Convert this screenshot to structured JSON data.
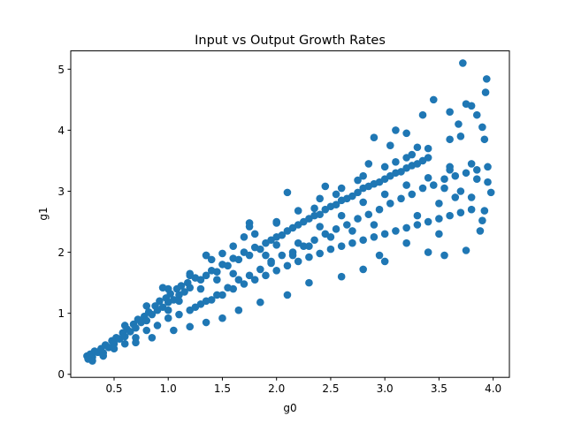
{
  "chart_data": {
    "type": "scatter",
    "title": "Input vs Output Growth Rates",
    "xlabel": "g0",
    "ylabel": "g1",
    "xlim": [
      0.1,
      4.15
    ],
    "ylim": [
      -0.05,
      5.3
    ],
    "xticks": [
      0.5,
      1.0,
      1.5,
      2.0,
      2.5,
      3.0,
      3.5,
      4.0
    ],
    "xtick_labels": [
      "0.5",
      "1.0",
      "1.5",
      "2.0",
      "2.5",
      "3.0",
      "3.5",
      "4.0"
    ],
    "yticks": [
      0,
      1,
      2,
      3,
      4,
      5
    ],
    "ytick_labels": [
      "0",
      "1",
      "2",
      "3",
      "4",
      "5"
    ],
    "grid": false,
    "marker_color": "#1f77b4",
    "series": [
      {
        "points": [
          [
            0.25,
            0.3
          ],
          [
            0.26,
            0.25
          ],
          [
            0.28,
            0.33
          ],
          [
            0.3,
            0.28
          ],
          [
            0.32,
            0.38
          ],
          [
            0.35,
            0.36
          ],
          [
            0.38,
            0.42
          ],
          [
            0.4,
            0.35
          ],
          [
            0.42,
            0.48
          ],
          [
            0.45,
            0.44
          ],
          [
            0.48,
            0.55
          ],
          [
            0.5,
            0.5
          ],
          [
            0.52,
            0.6
          ],
          [
            0.55,
            0.58
          ],
          [
            0.58,
            0.68
          ],
          [
            0.6,
            0.62
          ],
          [
            0.62,
            0.74
          ],
          [
            0.65,
            0.7
          ],
          [
            0.68,
            0.82
          ],
          [
            0.7,
            0.76
          ],
          [
            0.72,
            0.9
          ],
          [
            0.75,
            0.85
          ],
          [
            0.78,
            0.95
          ],
          [
            0.8,
            0.88
          ],
          [
            0.82,
            1.02
          ],
          [
            0.85,
            0.98
          ],
          [
            0.88,
            1.12
          ],
          [
            0.9,
            1.05
          ],
          [
            0.92,
            1.2
          ],
          [
            0.95,
            1.1
          ],
          [
            0.98,
            1.25
          ],
          [
            1.0,
            1.18
          ],
          [
            1.02,
            1.32
          ],
          [
            1.05,
            1.22
          ],
          [
            1.08,
            1.4
          ],
          [
            1.1,
            1.3
          ],
          [
            1.12,
            1.45
          ],
          [
            1.15,
            1.35
          ],
          [
            1.18,
            1.5
          ],
          [
            1.2,
            1.42
          ],
          [
            1.25,
            1.58
          ],
          [
            1.3,
            1.55
          ],
          [
            1.35,
            1.62
          ],
          [
            1.4,
            1.7
          ],
          [
            1.45,
            1.68
          ],
          [
            1.5,
            1.8
          ],
          [
            1.55,
            1.78
          ],
          [
            1.6,
            1.9
          ],
          [
            1.65,
            1.88
          ],
          [
            1.7,
            2.0
          ],
          [
            1.75,
            1.95
          ],
          [
            1.8,
            2.08
          ],
          [
            1.85,
            2.05
          ],
          [
            1.9,
            2.15
          ],
          [
            1.95,
            2.2
          ],
          [
            2.0,
            2.25
          ],
          [
            2.05,
            2.28
          ],
          [
            2.1,
            2.35
          ],
          [
            2.15,
            2.4
          ],
          [
            2.2,
            2.45
          ],
          [
            2.25,
            2.5
          ],
          [
            2.3,
            2.55
          ],
          [
            2.35,
            2.6
          ],
          [
            2.4,
            2.62
          ],
          [
            2.45,
            2.7
          ],
          [
            2.5,
            2.75
          ],
          [
            2.55,
            2.78
          ],
          [
            2.6,
            2.85
          ],
          [
            2.65,
            2.88
          ],
          [
            2.7,
            2.92
          ],
          [
            2.75,
            2.98
          ],
          [
            2.8,
            3.05
          ],
          [
            2.85,
            3.08
          ],
          [
            2.9,
            3.12
          ],
          [
            2.95,
            3.15
          ],
          [
            3.0,
            3.2
          ],
          [
            3.05,
            3.25
          ],
          [
            3.1,
            3.3
          ],
          [
            3.15,
            3.32
          ],
          [
            3.2,
            3.38
          ],
          [
            3.25,
            3.42
          ],
          [
            3.3,
            3.45
          ],
          [
            3.35,
            3.5
          ],
          [
            3.4,
            3.55
          ],
          [
            0.3,
            0.22
          ],
          [
            0.4,
            0.3
          ],
          [
            0.5,
            0.42
          ],
          [
            0.6,
            0.5
          ],
          [
            0.7,
            0.6
          ],
          [
            0.8,
            0.72
          ],
          [
            0.9,
            0.8
          ],
          [
            1.0,
            0.92
          ],
          [
            1.1,
            0.98
          ],
          [
            1.2,
            1.05
          ],
          [
            1.3,
            1.15
          ],
          [
            1.4,
            1.22
          ],
          [
            1.5,
            1.3
          ],
          [
            1.6,
            1.4
          ],
          [
            1.7,
            1.48
          ],
          [
            1.8,
            1.55
          ],
          [
            1.9,
            1.62
          ],
          [
            2.0,
            1.7
          ],
          [
            2.1,
            1.78
          ],
          [
            2.2,
            1.85
          ],
          [
            2.3,
            1.92
          ],
          [
            2.4,
            1.98
          ],
          [
            2.5,
            2.05
          ],
          [
            2.6,
            2.1
          ],
          [
            2.7,
            2.15
          ],
          [
            2.8,
            2.2
          ],
          [
            2.9,
            2.25
          ],
          [
            3.0,
            2.3
          ],
          [
            3.1,
            2.35
          ],
          [
            3.2,
            2.4
          ],
          [
            3.3,
            2.45
          ],
          [
            3.4,
            2.5
          ],
          [
            3.5,
            2.55
          ],
          [
            3.6,
            2.6
          ],
          [
            3.7,
            2.65
          ],
          [
            3.8,
            2.7
          ],
          [
            0.6,
            0.8
          ],
          [
            0.8,
            1.12
          ],
          [
            1.0,
            1.4
          ],
          [
            1.2,
            1.62
          ],
          [
            1.4,
            1.88
          ],
          [
            1.6,
            2.1
          ],
          [
            1.8,
            2.3
          ],
          [
            2.0,
            2.5
          ],
          [
            2.2,
            2.68
          ],
          [
            2.4,
            2.88
          ],
          [
            2.6,
            3.05
          ],
          [
            2.8,
            3.25
          ],
          [
            3.0,
            3.4
          ],
          [
            3.2,
            3.55
          ],
          [
            3.4,
            3.7
          ],
          [
            3.6,
            3.85
          ],
          [
            1.25,
            1.1
          ],
          [
            1.35,
            1.2
          ],
          [
            1.45,
            1.3
          ],
          [
            1.55,
            1.42
          ],
          [
            1.65,
            1.55
          ],
          [
            1.75,
            1.62
          ],
          [
            1.85,
            1.72
          ],
          [
            1.95,
            1.85
          ],
          [
            2.05,
            1.95
          ],
          [
            2.15,
            2.0
          ],
          [
            2.25,
            2.1
          ],
          [
            2.35,
            2.2
          ],
          [
            2.45,
            2.3
          ],
          [
            2.55,
            2.38
          ],
          [
            2.65,
            2.45
          ],
          [
            2.75,
            2.55
          ],
          [
            2.85,
            2.62
          ],
          [
            2.95,
            2.7
          ],
          [
            3.05,
            2.8
          ],
          [
            3.15,
            2.88
          ],
          [
            3.25,
            2.95
          ],
          [
            3.35,
            3.05
          ],
          [
            3.45,
            3.1
          ],
          [
            3.55,
            3.2
          ],
          [
            3.65,
            3.25
          ],
          [
            3.75,
            3.3
          ],
          [
            3.85,
            3.35
          ],
          [
            3.95,
            3.4
          ],
          [
            0.95,
            1.42
          ],
          [
            1.2,
            1.65
          ],
          [
            1.35,
            1.95
          ],
          [
            1.5,
            1.98
          ],
          [
            1.7,
            2.25
          ],
          [
            1.75,
            2.48
          ],
          [
            2.1,
            2.98
          ],
          [
            2.45,
            3.08
          ],
          [
            2.9,
            3.88
          ],
          [
            3.1,
            4.0
          ],
          [
            3.2,
            3.95
          ],
          [
            3.35,
            4.25
          ],
          [
            3.45,
            4.5
          ],
          [
            3.6,
            4.3
          ],
          [
            3.68,
            4.1
          ],
          [
            3.72,
            5.1
          ],
          [
            3.75,
            4.43
          ],
          [
            3.8,
            4.4
          ],
          [
            3.85,
            4.25
          ],
          [
            3.9,
            4.05
          ],
          [
            3.93,
            4.62
          ],
          [
            3.94,
            4.84
          ],
          [
            3.92,
            3.85
          ],
          [
            3.95,
            3.15
          ],
          [
            3.98,
            2.98
          ],
          [
            3.92,
            2.68
          ],
          [
            3.9,
            2.52
          ],
          [
            3.88,
            2.35
          ],
          [
            3.75,
            2.03
          ],
          [
            3.55,
            1.95
          ],
          [
            3.4,
            2.0
          ],
          [
            3.0,
            1.85
          ],
          [
            3.5,
            2.3
          ],
          [
            3.2,
            2.15
          ],
          [
            2.95,
            1.95
          ],
          [
            2.8,
            1.72
          ],
          [
            2.6,
            1.6
          ],
          [
            2.3,
            1.5
          ],
          [
            2.1,
            1.3
          ],
          [
            1.85,
            1.18
          ],
          [
            1.65,
            1.05
          ],
          [
            1.5,
            0.92
          ],
          [
            1.35,
            0.85
          ],
          [
            1.2,
            0.78
          ],
          [
            1.05,
            0.72
          ],
          [
            0.85,
            0.6
          ],
          [
            0.7,
            0.52
          ],
          [
            1.35,
            1.95
          ],
          [
            1.75,
            2.42
          ],
          [
            2.0,
            2.48
          ],
          [
            3.05,
            3.75
          ],
          [
            3.25,
            3.6
          ],
          [
            3.7,
            3.9
          ],
          [
            3.55,
            3.05
          ],
          [
            3.65,
            2.9
          ],
          [
            3.85,
            3.2
          ],
          [
            3.6,
            3.4
          ],
          [
            3.7,
            3.0
          ],
          [
            3.8,
            2.9
          ],
          [
            3.5,
            2.8
          ],
          [
            3.3,
            2.6
          ],
          [
            2.9,
            2.45
          ],
          [
            2.7,
            2.35
          ],
          [
            2.5,
            2.25
          ],
          [
            2.3,
            2.1
          ],
          [
            2.15,
            1.95
          ],
          [
            1.95,
            1.82
          ],
          [
            1.6,
            1.65
          ],
          [
            1.45,
            1.55
          ],
          [
            1.3,
            1.4
          ],
          [
            1.1,
            1.2
          ],
          [
            2.2,
            2.15
          ],
          [
            2.4,
            2.42
          ],
          [
            2.6,
            2.6
          ],
          [
            2.8,
            2.82
          ],
          [
            3.0,
            2.95
          ],
          [
            3.2,
            3.1
          ],
          [
            3.4,
            3.22
          ],
          [
            3.6,
            3.35
          ],
          [
            3.8,
            3.45
          ],
          [
            1.0,
            1.05
          ],
          [
            1.9,
            1.95
          ],
          [
            2.0,
            2.12
          ],
          [
            2.35,
            2.72
          ],
          [
            2.55,
            2.95
          ],
          [
            2.75,
            3.18
          ],
          [
            3.1,
            3.48
          ],
          [
            3.3,
            3.72
          ],
          [
            2.85,
            3.45
          ]
        ]
      }
    ]
  }
}
